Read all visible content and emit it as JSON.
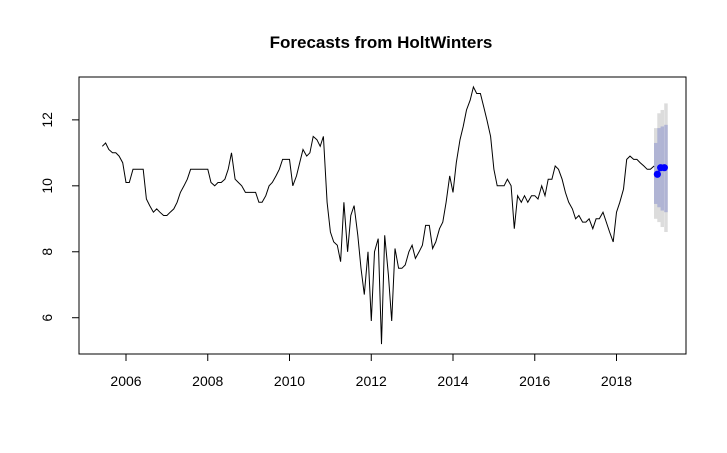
{
  "chart_data": {
    "type": "line",
    "title": "Forecasts from HoltWinters",
    "xlabel": "",
    "ylabel": "",
    "xlim": [
      2004.85,
      2019.7
    ],
    "ylim": [
      4.9,
      13.3
    ],
    "x_ticks": [
      2006,
      2008,
      2010,
      2012,
      2014,
      2016,
      2018
    ],
    "x_tick_labels": [
      "2006",
      "2008",
      "2010",
      "2012",
      "2014",
      "2016",
      "2018"
    ],
    "y_ticks": [
      6,
      8,
      10,
      12
    ],
    "y_tick_labels": [
      "6",
      "8",
      "10",
      "12"
    ],
    "grid": false,
    "colors": {
      "series": "#000000",
      "forecast_point": "#0000ff",
      "band_80": "#b0b4d4",
      "band_95": "#dcdcdc"
    },
    "series": [
      {
        "points": [
          [
            2005.42,
            11.2
          ],
          [
            2005.5,
            11.3
          ],
          [
            2005.58,
            11.1
          ],
          [
            2005.67,
            11.0
          ],
          [
            2005.75,
            11.0
          ],
          [
            2005.83,
            10.9
          ],
          [
            2005.92,
            10.7
          ],
          [
            2006.0,
            10.1
          ],
          [
            2006.08,
            10.1
          ],
          [
            2006.17,
            10.5
          ],
          [
            2006.25,
            10.5
          ],
          [
            2006.33,
            10.5
          ],
          [
            2006.42,
            10.5
          ],
          [
            2006.5,
            9.6
          ],
          [
            2006.58,
            9.4
          ],
          [
            2006.67,
            9.2
          ],
          [
            2006.75,
            9.3
          ],
          [
            2006.83,
            9.2
          ],
          [
            2006.92,
            9.1
          ],
          [
            2007.0,
            9.1
          ],
          [
            2007.08,
            9.2
          ],
          [
            2007.17,
            9.3
          ],
          [
            2007.25,
            9.5
          ],
          [
            2007.33,
            9.8
          ],
          [
            2007.42,
            10.0
          ],
          [
            2007.5,
            10.2
          ],
          [
            2007.58,
            10.5
          ],
          [
            2007.67,
            10.5
          ],
          [
            2007.75,
            10.5
          ],
          [
            2007.83,
            10.5
          ],
          [
            2007.92,
            10.5
          ],
          [
            2008.0,
            10.5
          ],
          [
            2008.08,
            10.1
          ],
          [
            2008.17,
            10.0
          ],
          [
            2008.25,
            10.1
          ],
          [
            2008.33,
            10.1
          ],
          [
            2008.42,
            10.2
          ],
          [
            2008.5,
            10.5
          ],
          [
            2008.58,
            11.0
          ],
          [
            2008.67,
            10.2
          ],
          [
            2008.75,
            10.1
          ],
          [
            2008.83,
            10.0
          ],
          [
            2008.92,
            9.8
          ],
          [
            2009.0,
            9.8
          ],
          [
            2009.08,
            9.8
          ],
          [
            2009.17,
            9.8
          ],
          [
            2009.25,
            9.5
          ],
          [
            2009.33,
            9.5
          ],
          [
            2009.42,
            9.7
          ],
          [
            2009.5,
            10.0
          ],
          [
            2009.58,
            10.1
          ],
          [
            2009.67,
            10.3
          ],
          [
            2009.75,
            10.5
          ],
          [
            2009.83,
            10.8
          ],
          [
            2009.92,
            10.8
          ],
          [
            2010.0,
            10.8
          ],
          [
            2010.08,
            10.0
          ],
          [
            2010.17,
            10.3
          ],
          [
            2010.25,
            10.7
          ],
          [
            2010.33,
            11.1
          ],
          [
            2010.42,
            10.9
          ],
          [
            2010.5,
            11.0
          ],
          [
            2010.58,
            11.5
          ],
          [
            2010.67,
            11.4
          ],
          [
            2010.75,
            11.2
          ],
          [
            2010.83,
            11.5
          ],
          [
            2010.92,
            9.5
          ],
          [
            2011.0,
            8.6
          ],
          [
            2011.08,
            8.3
          ],
          [
            2011.17,
            8.2
          ],
          [
            2011.25,
            7.7
          ],
          [
            2011.33,
            9.5
          ],
          [
            2011.42,
            8.0
          ],
          [
            2011.5,
            9.1
          ],
          [
            2011.58,
            9.4
          ],
          [
            2011.67,
            8.5
          ],
          [
            2011.75,
            7.5
          ],
          [
            2011.83,
            6.7
          ],
          [
            2011.92,
            8.0
          ],
          [
            2012.0,
            5.9
          ],
          [
            2012.08,
            8.0
          ],
          [
            2012.17,
            8.4
          ],
          [
            2012.25,
            5.2
          ],
          [
            2012.33,
            8.5
          ],
          [
            2012.42,
            7.3
          ],
          [
            2012.5,
            5.9
          ],
          [
            2012.58,
            8.1
          ],
          [
            2012.67,
            7.5
          ],
          [
            2012.75,
            7.5
          ],
          [
            2012.83,
            7.6
          ],
          [
            2012.92,
            8.0
          ],
          [
            2013.0,
            8.2
          ],
          [
            2013.08,
            7.8
          ],
          [
            2013.17,
            8.0
          ],
          [
            2013.25,
            8.2
          ],
          [
            2013.33,
            8.8
          ],
          [
            2013.42,
            8.8
          ],
          [
            2013.5,
            8.1
          ],
          [
            2013.58,
            8.3
          ],
          [
            2013.67,
            8.7
          ],
          [
            2013.75,
            8.9
          ],
          [
            2013.83,
            9.5
          ],
          [
            2013.92,
            10.3
          ],
          [
            2014.0,
            9.8
          ],
          [
            2014.08,
            10.7
          ],
          [
            2014.17,
            11.4
          ],
          [
            2014.25,
            11.8
          ],
          [
            2014.33,
            12.3
          ],
          [
            2014.42,
            12.6
          ],
          [
            2014.5,
            13.0
          ],
          [
            2014.58,
            12.8
          ],
          [
            2014.67,
            12.8
          ],
          [
            2014.75,
            12.4
          ],
          [
            2014.83,
            12.0
          ],
          [
            2014.92,
            11.5
          ],
          [
            2015.0,
            10.5
          ],
          [
            2015.08,
            10.0
          ],
          [
            2015.17,
            10.0
          ],
          [
            2015.25,
            10.0
          ],
          [
            2015.33,
            10.2
          ],
          [
            2015.42,
            10.0
          ],
          [
            2015.5,
            8.7
          ],
          [
            2015.58,
            9.7
          ],
          [
            2015.67,
            9.5
          ],
          [
            2015.75,
            9.7
          ],
          [
            2015.83,
            9.5
          ],
          [
            2015.92,
            9.7
          ],
          [
            2016.0,
            9.7
          ],
          [
            2016.08,
            9.6
          ],
          [
            2016.17,
            10.0
          ],
          [
            2016.25,
            9.7
          ],
          [
            2016.33,
            10.2
          ],
          [
            2016.42,
            10.2
          ],
          [
            2016.5,
            10.6
          ],
          [
            2016.58,
            10.5
          ],
          [
            2016.67,
            10.2
          ],
          [
            2016.75,
            9.8
          ],
          [
            2016.83,
            9.5
          ],
          [
            2016.92,
            9.3
          ],
          [
            2017.0,
            9.0
          ],
          [
            2017.08,
            9.1
          ],
          [
            2017.17,
            8.9
          ],
          [
            2017.25,
            8.9
          ],
          [
            2017.33,
            9.0
          ],
          [
            2017.42,
            8.7
          ],
          [
            2017.5,
            9.0
          ],
          [
            2017.58,
            9.0
          ],
          [
            2017.67,
            9.2
          ],
          [
            2017.75,
            8.9
          ],
          [
            2017.83,
            8.6
          ],
          [
            2017.92,
            8.3
          ],
          [
            2018.0,
            9.2
          ],
          [
            2018.08,
            9.5
          ],
          [
            2018.17,
            9.9
          ],
          [
            2018.25,
            10.8
          ],
          [
            2018.33,
            10.9
          ],
          [
            2018.42,
            10.8
          ],
          [
            2018.5,
            10.8
          ],
          [
            2018.58,
            10.7
          ],
          [
            2018.67,
            10.6
          ],
          [
            2018.75,
            10.5
          ],
          [
            2018.83,
            10.5
          ],
          [
            2018.92,
            10.6
          ]
        ]
      }
    ],
    "forecast": {
      "points": [
        [
          2019.0,
          10.35
        ],
        [
          2019.08,
          10.55
        ],
        [
          2019.17,
          10.55
        ]
      ],
      "band_80": [
        [
          2018.96,
          9.45,
          11.3
        ],
        [
          2019.04,
          9.35,
          11.75
        ],
        [
          2019.12,
          9.25,
          11.8
        ],
        [
          2019.21,
          9.2,
          11.85
        ]
      ],
      "band_95": [
        [
          2018.96,
          9.0,
          11.75
        ],
        [
          2019.04,
          8.9,
          12.2
        ],
        [
          2019.12,
          8.75,
          12.3
        ],
        [
          2019.21,
          8.6,
          12.5
        ]
      ]
    }
  }
}
